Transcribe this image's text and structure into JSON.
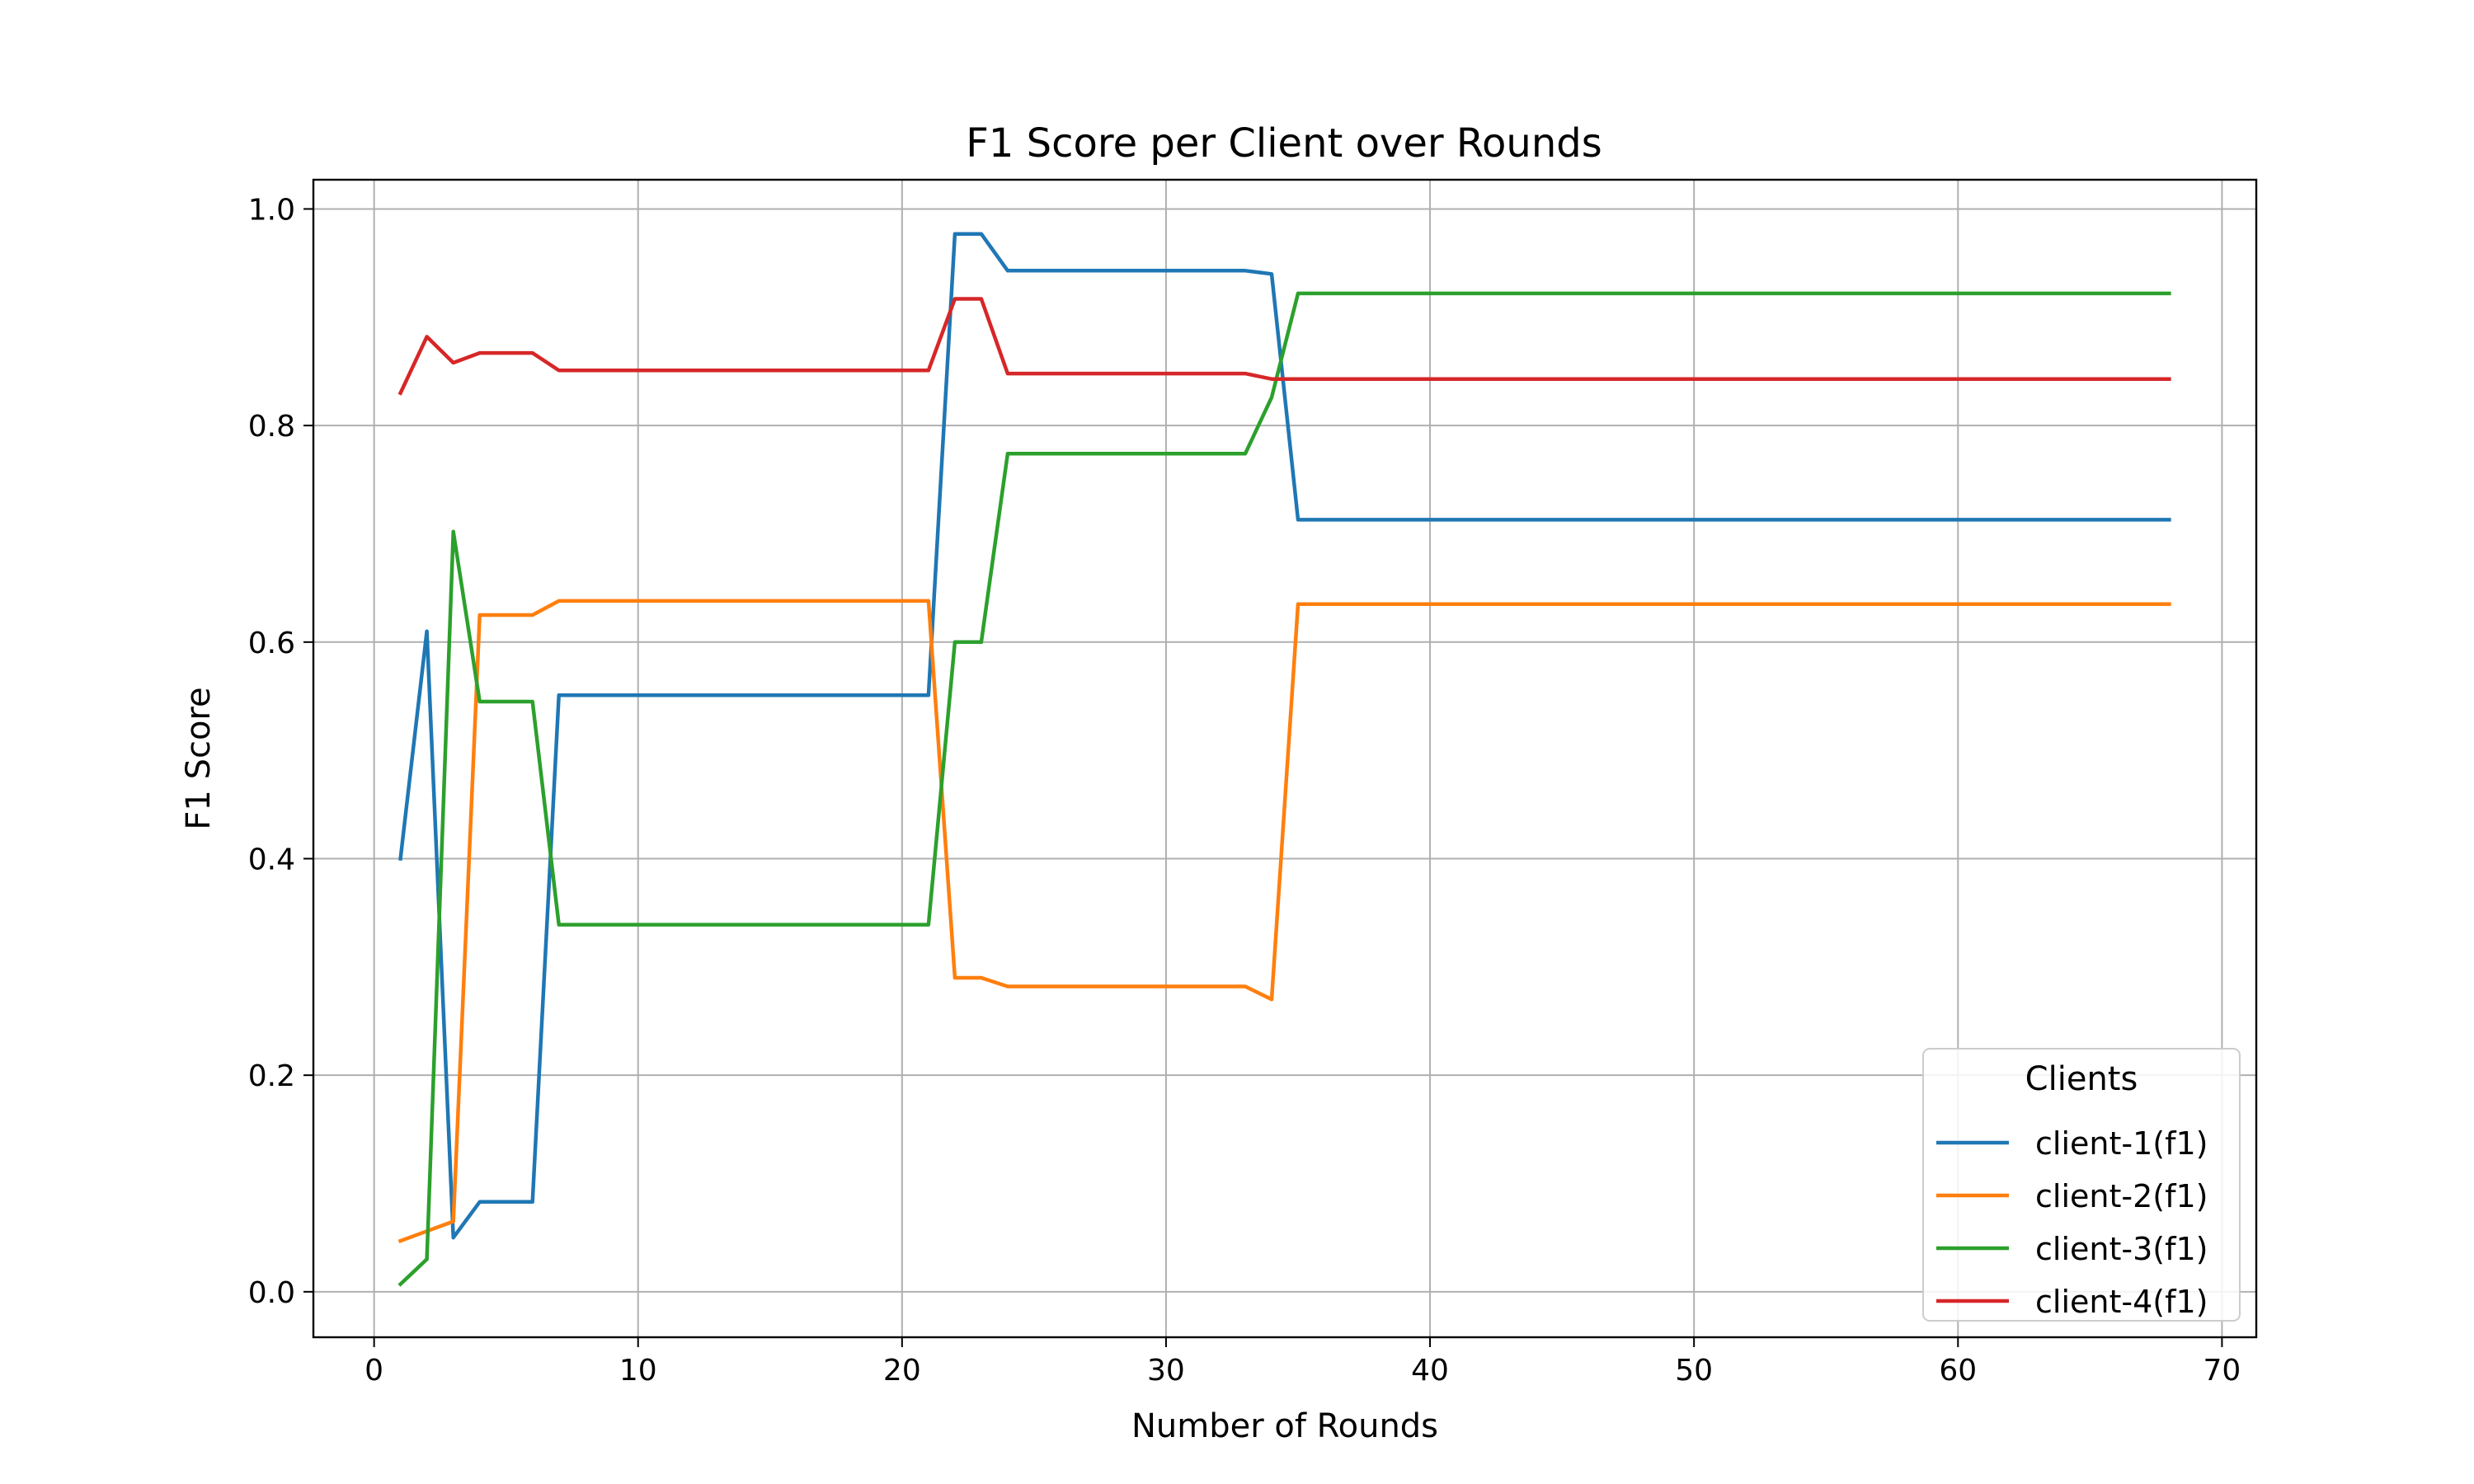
{
  "chart_data": {
    "type": "line",
    "title": "F1 Score per Client over Rounds",
    "xlabel": "Number of Rounds",
    "ylabel": "F1 Score",
    "xlim": [
      -2.3,
      71.3
    ],
    "ylim": [
      -0.042,
      1.027
    ],
    "xticks": [
      0,
      10,
      20,
      30,
      40,
      50,
      60,
      70
    ],
    "xtick_labels": [
      "0",
      "10",
      "20",
      "30",
      "40",
      "50",
      "60",
      "70"
    ],
    "yticks": [
      0.0,
      0.2,
      0.4,
      0.6,
      0.8,
      1.0
    ],
    "ytick_labels": [
      "0.0",
      "0.2",
      "0.4",
      "0.6",
      "0.8",
      "1.0"
    ],
    "grid": true,
    "legend": {
      "title": "Clients",
      "position": "lower-right"
    },
    "series": [
      {
        "name": "client-1(f1)",
        "color": "#1f77b4",
        "points": [
          [
            1,
            0.4
          ],
          [
            2,
            0.61
          ],
          [
            3,
            0.05
          ],
          [
            4,
            0.083
          ],
          [
            6,
            0.083
          ],
          [
            7,
            0.551
          ],
          [
            21,
            0.551
          ],
          [
            22,
            0.977
          ],
          [
            23,
            0.977
          ],
          [
            24,
            0.943
          ],
          [
            33,
            0.943
          ],
          [
            34,
            0.94
          ],
          [
            35,
            0.713
          ],
          [
            68,
            0.713
          ]
        ]
      },
      {
        "name": "client-2(f1)",
        "color": "#ff7f0e",
        "points": [
          [
            1,
            0.047
          ],
          [
            3,
            0.065
          ],
          [
            4,
            0.625
          ],
          [
            6,
            0.625
          ],
          [
            7,
            0.638
          ],
          [
            21,
            0.638
          ],
          [
            22,
            0.29
          ],
          [
            23,
            0.29
          ],
          [
            24,
            0.282
          ],
          [
            33,
            0.282
          ],
          [
            34,
            0.27
          ],
          [
            35,
            0.635
          ],
          [
            68,
            0.635
          ]
        ]
      },
      {
        "name": "client-3(f1)",
        "color": "#2ca02c",
        "points": [
          [
            1,
            0.007
          ],
          [
            2,
            0.03
          ],
          [
            3,
            0.702
          ],
          [
            4,
            0.545
          ],
          [
            6,
            0.545
          ],
          [
            7,
            0.339
          ],
          [
            21,
            0.339
          ],
          [
            22,
            0.6
          ],
          [
            23,
            0.6
          ],
          [
            24,
            0.774
          ],
          [
            33,
            0.774
          ],
          [
            34,
            0.826
          ],
          [
            35,
            0.922
          ],
          [
            68,
            0.922
          ]
        ]
      },
      {
        "name": "client-4(f1)",
        "color": "#d62728",
        "points": [
          [
            1,
            0.83
          ],
          [
            2,
            0.882
          ],
          [
            3,
            0.858
          ],
          [
            4,
            0.867
          ],
          [
            6,
            0.867
          ],
          [
            7,
            0.851
          ],
          [
            21,
            0.851
          ],
          [
            22,
            0.917
          ],
          [
            23,
            0.917
          ],
          [
            24,
            0.848
          ],
          [
            33,
            0.848
          ],
          [
            34,
            0.843
          ],
          [
            68,
            0.843
          ]
        ]
      }
    ]
  }
}
